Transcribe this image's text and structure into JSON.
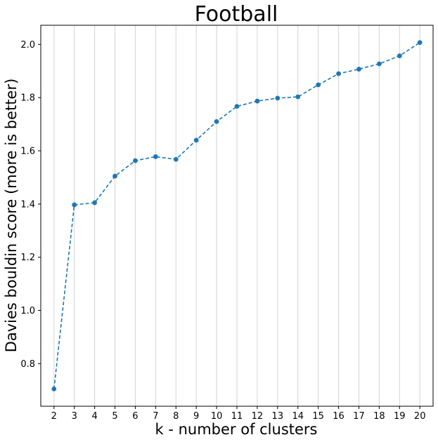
{
  "chart_data": {
    "type": "line",
    "title": "Football",
    "xlabel": "k - number of clusters",
    "ylabel": "Davies bouldin score (more is better)",
    "x": [
      2,
      3,
      4,
      5,
      6,
      7,
      8,
      9,
      10,
      11,
      12,
      13,
      14,
      15,
      16,
      17,
      18,
      19,
      20
    ],
    "series": [
      {
        "values": [
          0.705,
          1.397,
          1.405,
          1.505,
          1.563,
          1.578,
          1.568,
          1.64,
          1.71,
          1.767,
          1.787,
          1.798,
          1.803,
          1.848,
          1.89,
          1.907,
          1.927,
          1.957,
          2.007
        ]
      }
    ],
    "xlim": [
      1.35,
      20.65
    ],
    "ylim": [
      0.64,
      2.072
    ],
    "xticks": [
      "2",
      "3",
      "4",
      "5",
      "6",
      "7",
      "8",
      "9",
      "10",
      "11",
      "12",
      "13",
      "14",
      "15",
      "16",
      "17",
      "18",
      "19",
      "20"
    ],
    "yticks": [
      0.8,
      1.0,
      1.2,
      1.4,
      1.6,
      1.8,
      2.0
    ],
    "ytick_labels": [
      "0.8",
      "1.0",
      "1.2",
      "1.4",
      "1.6",
      "1.8",
      "2.0"
    ],
    "grid": "vertical",
    "line_style": "dashed",
    "marker": "circle",
    "color": "#1f77b4",
    "grid_color": "#d3d3d3"
  }
}
